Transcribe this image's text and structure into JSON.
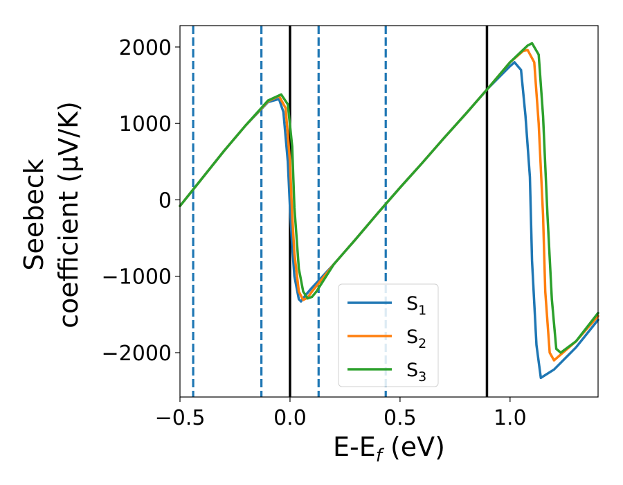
{
  "chart_data": {
    "type": "line",
    "xlabel": "E-E",
    "xlabel_sub": "f",
    "xlabel_unit": " (eV)",
    "ylabel_line1": "Seebeck",
    "ylabel_line2": "coefficient  (μV/K)",
    "xlim": [
      -0.5,
      1.4
    ],
    "ylim": [
      -2580,
      2280
    ],
    "xticks": [
      -0.5,
      0.0,
      0.5,
      1.0
    ],
    "xtick_labels": [
      "−0.5",
      "0.0",
      "0.5",
      "1.0"
    ],
    "yticks": [
      2000,
      1000,
      0,
      -1000,
      -2000
    ],
    "ytick_labels": [
      "2000",
      "1000",
      "0",
      "−1000",
      "−2000"
    ],
    "vertical_lines": [
      {
        "x": -0.44,
        "style": "dashed",
        "color": "#1f77b4"
      },
      {
        "x": -0.13,
        "style": "dashed",
        "color": "#1f77b4"
      },
      {
        "x": 0.0,
        "style": "solid",
        "color": "#000000"
      },
      {
        "x": 0.13,
        "style": "dashed",
        "color": "#1f77b4"
      },
      {
        "x": 0.435,
        "style": "dashed",
        "color": "#1f77b4"
      },
      {
        "x": 0.895,
        "style": "solid",
        "color": "#000000"
      }
    ],
    "legend_position": "lower-center",
    "series": [
      {
        "name": "S",
        "sub": "1",
        "color": "#1f77b4",
        "x": [
          -0.5,
          -0.4,
          -0.3,
          -0.2,
          -0.1,
          -0.05,
          -0.03,
          -0.01,
          0.0,
          0.01,
          0.02,
          0.04,
          0.05,
          0.07,
          0.1,
          0.2,
          0.3,
          0.4,
          0.5,
          0.6,
          0.7,
          0.8,
          0.9,
          1.0,
          1.02,
          1.05,
          1.07,
          1.09,
          1.1,
          1.12,
          1.14,
          1.2,
          1.3,
          1.4
        ],
        "y": [
          -80,
          280,
          640,
          980,
          1280,
          1320,
          1150,
          500,
          -100,
          -600,
          -1000,
          -1300,
          -1330,
          -1250,
          -1150,
          -840,
          -510,
          -170,
          160,
          480,
          810,
          1130,
          1460,
          1750,
          1800,
          1700,
          1100,
          300,
          -800,
          -1900,
          -2330,
          -2220,
          -1930,
          -1570
        ]
      },
      {
        "name": "S",
        "sub": "2",
        "color": "#ff7f0e",
        "x": [
          -0.5,
          -0.4,
          -0.3,
          -0.2,
          -0.1,
          -0.05,
          -0.02,
          0.0,
          0.01,
          0.02,
          0.04,
          0.06,
          0.08,
          0.1,
          0.2,
          0.3,
          0.4,
          0.5,
          0.6,
          0.7,
          0.8,
          0.9,
          1.0,
          1.06,
          1.08,
          1.11,
          1.13,
          1.15,
          1.16,
          1.18,
          1.2,
          1.3,
          1.4
        ],
        "y": [
          -80,
          280,
          640,
          980,
          1290,
          1360,
          1200,
          500,
          -200,
          -700,
          -1200,
          -1310,
          -1280,
          -1200,
          -840,
          -510,
          -170,
          160,
          480,
          810,
          1130,
          1460,
          1800,
          1950,
          1960,
          1800,
          1000,
          -200,
          -1200,
          -2000,
          -2100,
          -1850,
          -1520
        ]
      },
      {
        "name": "S",
        "sub": "3",
        "color": "#2ca02c",
        "x": [
          -0.5,
          -0.4,
          -0.3,
          -0.2,
          -0.1,
          -0.04,
          -0.01,
          0.01,
          0.02,
          0.04,
          0.06,
          0.08,
          0.1,
          0.12,
          0.2,
          0.3,
          0.4,
          0.5,
          0.6,
          0.7,
          0.8,
          0.9,
          1.0,
          1.08,
          1.1,
          1.13,
          1.15,
          1.17,
          1.19,
          1.21,
          1.23,
          1.3,
          1.4
        ],
        "y": [
          -80,
          280,
          640,
          980,
          1300,
          1380,
          1250,
          700,
          -100,
          -900,
          -1200,
          -1290,
          -1270,
          -1200,
          -840,
          -510,
          -170,
          160,
          480,
          810,
          1130,
          1460,
          1800,
          2020,
          2050,
          1900,
          1100,
          -200,
          -1300,
          -1950,
          -2000,
          -1850,
          -1480
        ]
      }
    ]
  }
}
